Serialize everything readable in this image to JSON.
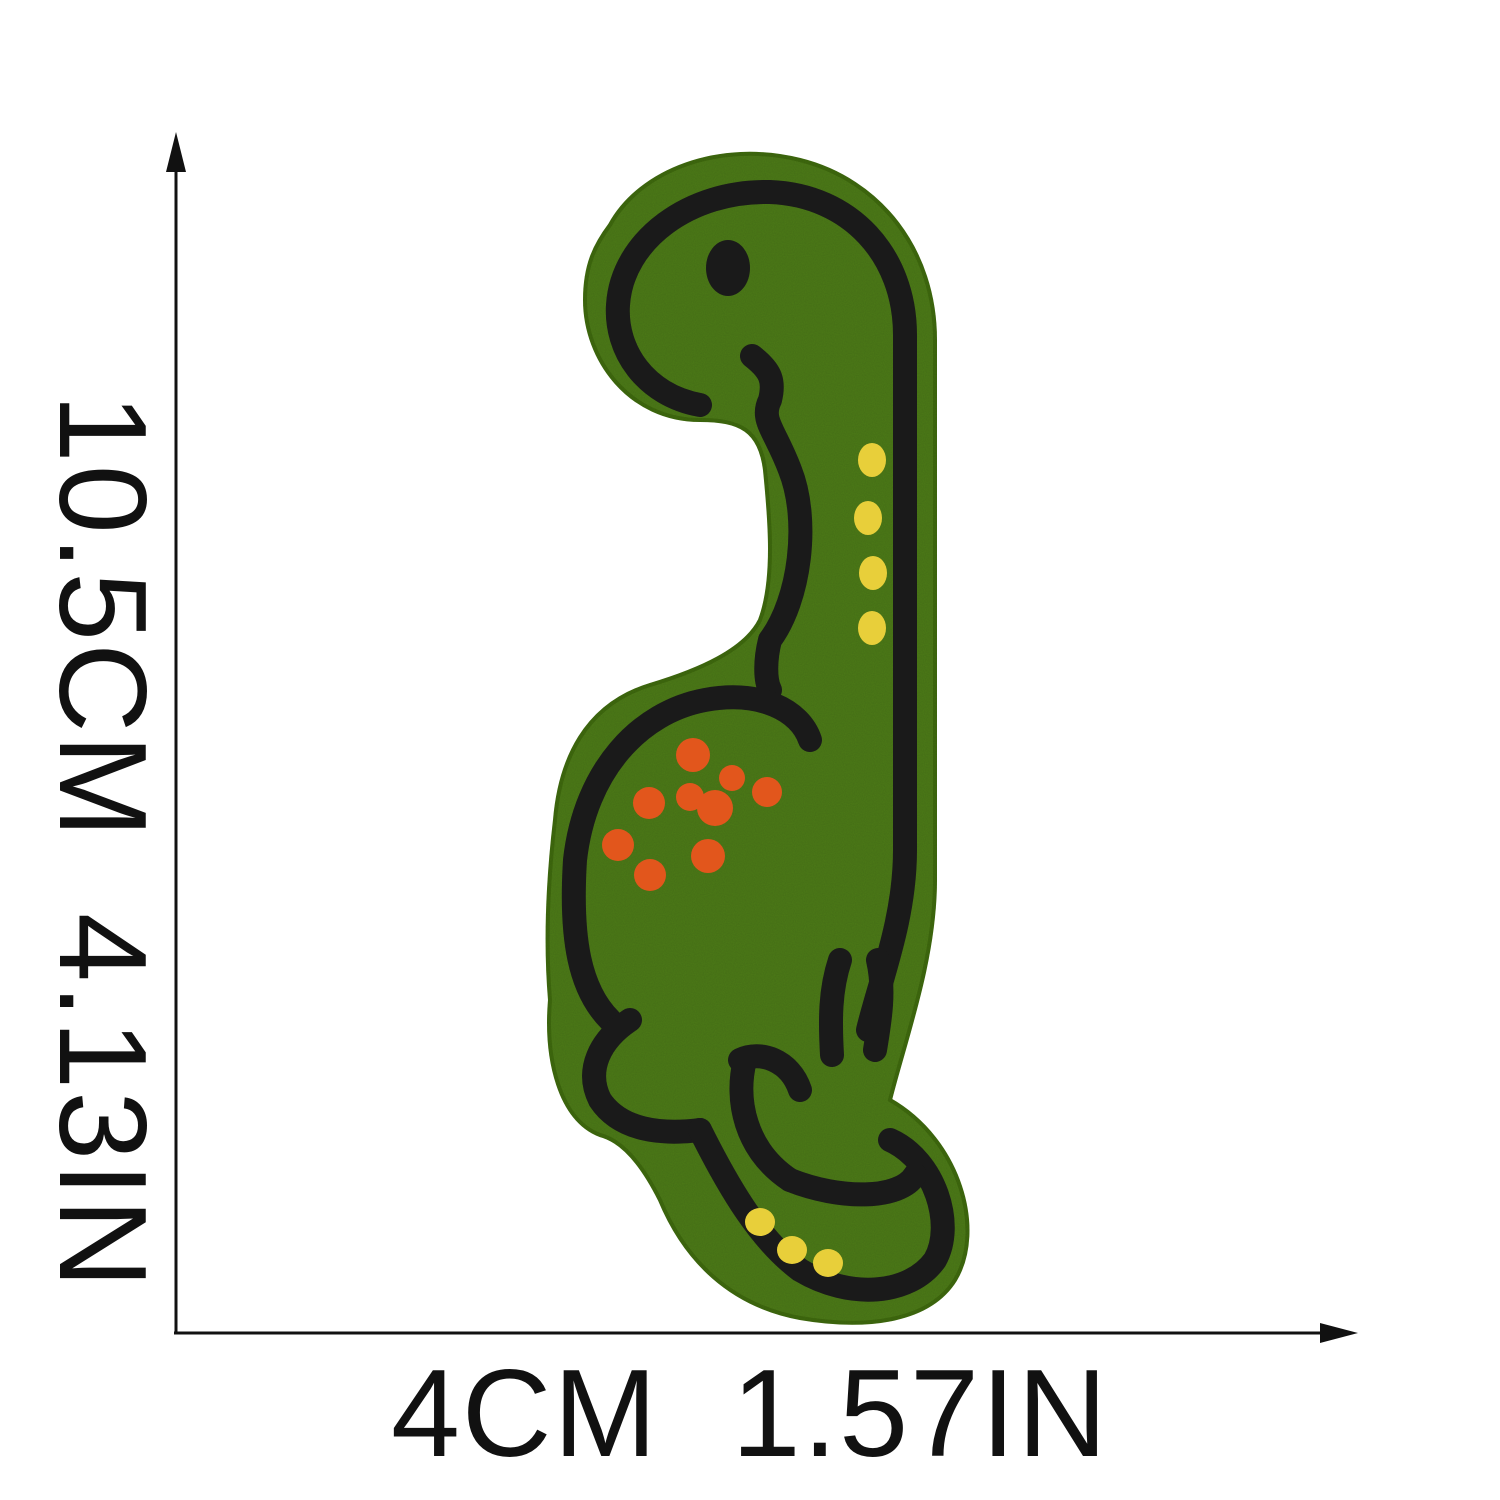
{
  "dimensions": {
    "height_label": "10.5CM  4.13IN",
    "width_label": "4CM  1.57IN"
  },
  "colors": {
    "patch_green": "#4e7a1c",
    "outline": "#1a1a1a",
    "spots_orange": "#e2561c",
    "spots_yellow": "#e8cf3a",
    "arrow": "#111111",
    "background": "#ffffff"
  },
  "subject": {
    "icon": "dinosaur-patch-icon"
  }
}
